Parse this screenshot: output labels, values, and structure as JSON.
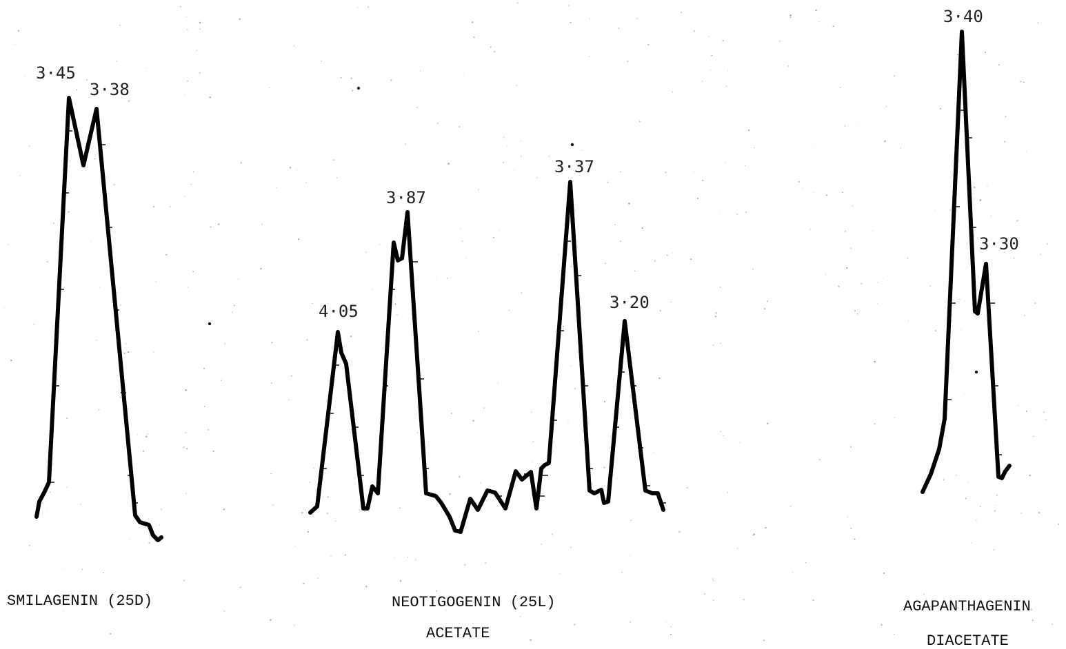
{
  "chart_data": [
    {
      "type": "line",
      "name_lines": [
        "SMILAGENIN (25D)"
      ],
      "peaks": [
        {
          "label": "3·45"
        },
        {
          "label": "3·38"
        }
      ]
    },
    {
      "type": "line",
      "name_lines": [
        "NEOTIGOGENIN  (25L)",
        "ACETATE"
      ],
      "peaks": [
        {
          "label": "4·05"
        },
        {
          "label": "3·87"
        },
        {
          "label": "3·37"
        },
        {
          "label": "3·20"
        }
      ]
    },
    {
      "type": "line",
      "name_lines": [
        "AGAPANTHAGENIN",
        "DIACETATE"
      ],
      "peaks": [
        {
          "label": "3·40"
        },
        {
          "label": "3·30"
        }
      ]
    }
  ],
  "colors": {
    "trace": "#000000",
    "text": "#222222",
    "background": "#ffffff"
  }
}
